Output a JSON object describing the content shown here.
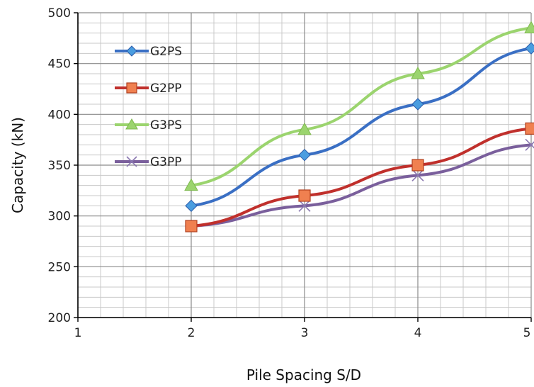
{
  "chart_data": {
    "type": "line",
    "xlabel": "Pile Spacing S/D",
    "ylabel": "Capacity (kN)",
    "xlim": [
      1,
      5
    ],
    "ylim": [
      200,
      500
    ],
    "xticks": [
      "1",
      "2",
      "3",
      "4",
      "5"
    ],
    "yticks": [
      "200",
      "250",
      "300",
      "350",
      "400",
      "450",
      "500"
    ],
    "grid": true,
    "legend_position": "top-left",
    "x": [
      2,
      3,
      4,
      5
    ],
    "series": [
      {
        "name": "G2PS",
        "values": [
          310,
          360,
          410,
          465
        ],
        "color": "#3a6fc4",
        "marker": "diamond",
        "marker_color": "#4a9de0"
      },
      {
        "name": "G2PP",
        "values": [
          290,
          320,
          350,
          386
        ],
        "color": "#c0302c",
        "marker": "square",
        "marker_color": "#f08050"
      },
      {
        "name": "G3PS",
        "values": [
          330,
          385,
          440,
          485
        ],
        "color": "#9bd46e",
        "marker": "triangle",
        "marker_color": "#9bd46e"
      },
      {
        "name": "G3PP",
        "values": [
          290,
          310,
          340,
          370
        ],
        "color": "#7a5f9c",
        "marker": "x",
        "marker_color": "#8a78b0"
      }
    ]
  }
}
